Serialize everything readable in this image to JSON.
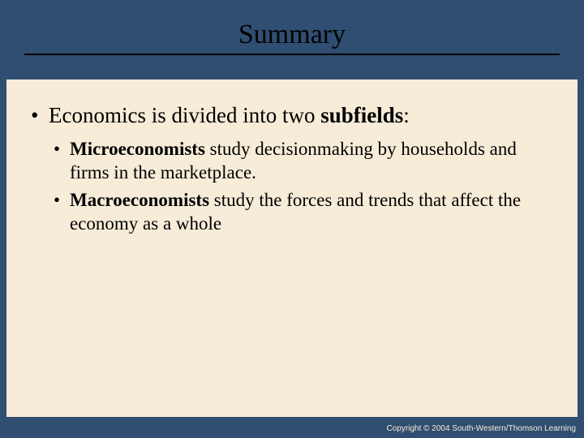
{
  "slide": {
    "title": "Summary",
    "background_color": "#2f4e71",
    "content_bg_color": "#f6ecd8",
    "title_color": "#000000",
    "rule_color": "#000000",
    "text_color": "#000000",
    "title_fontsize": 34,
    "body_fontsize_l1": 27,
    "body_fontsize_l2": 23,
    "font_family": "Times New Roman",
    "bullets": {
      "l1_prefix": "Economics is divided into two ",
      "l1_bold": "subfields",
      "l1_suffix": ":",
      "l2a_bold": "Microeconomists",
      "l2a_rest": " study decisionmaking by households and firms in the marketplace.",
      "l2b_bold": "Macroeconomists",
      "l2b_rest": " study the forces and trends that affect the economy as a whole"
    },
    "copyright": "Copyright © 2004  South-Western/Thomson Learning"
  }
}
